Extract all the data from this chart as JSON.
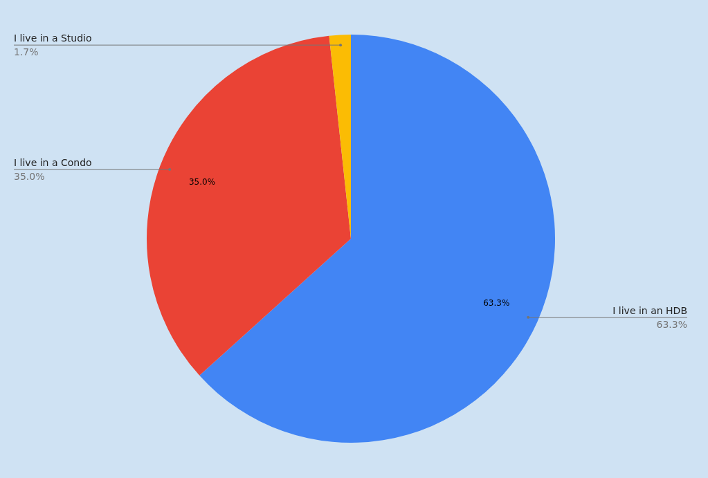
{
  "chart_data": {
    "type": "pie",
    "categories": [
      "I live in an HDB",
      "I live in a Condo",
      "I live in a Studio"
    ],
    "values": [
      63.3,
      35.0,
      1.7
    ],
    "colors": [
      "#4285f4",
      "#ea4335",
      "#fbbc04"
    ],
    "value_labels": [
      "63.3%",
      "35.0%",
      "1.7%"
    ]
  }
}
